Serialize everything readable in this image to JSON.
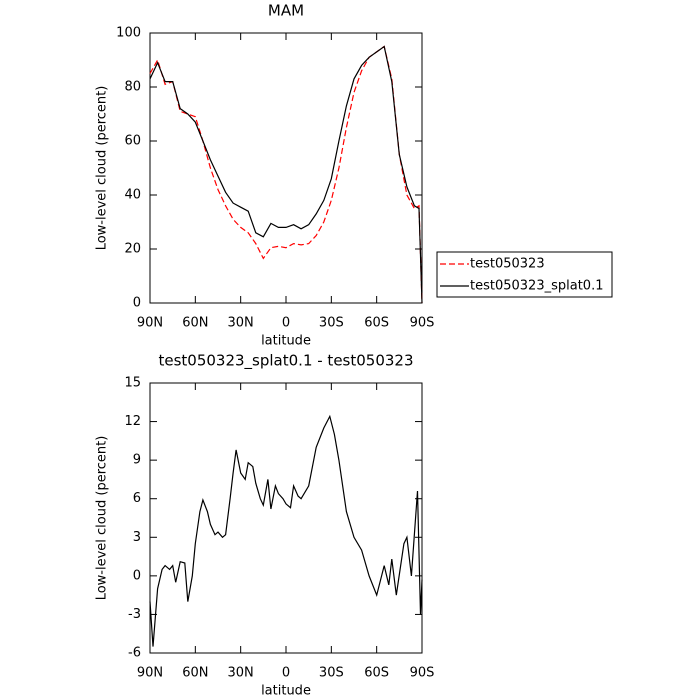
{
  "chart_data": [
    {
      "type": "line",
      "title": "MAM",
      "x_label": "latitude",
      "y_label": "Low-level cloud (percent)",
      "xlim": [
        90,
        -90
      ],
      "xticks": [
        {
          "value": 90,
          "label": "90N"
        },
        {
          "value": 60,
          "label": "60N"
        },
        {
          "value": 30,
          "label": "30N"
        },
        0,
        {
          "value": -30,
          "label": "30S"
        },
        {
          "value": -60,
          "label": "60S"
        },
        {
          "value": -90,
          "label": "90S"
        }
      ],
      "ylim": [
        0,
        100
      ],
      "yticks": [
        0,
        20,
        40,
        60,
        80,
        100
      ],
      "legend": "right",
      "x": [
        90,
        85,
        80,
        75,
        70,
        65,
        60,
        55,
        50,
        45,
        40,
        35,
        30,
        25,
        20,
        15,
        10,
        5,
        0,
        -5,
        -10,
        -15,
        -20,
        -25,
        -30,
        -35,
        -40,
        -45,
        -50,
        -55,
        -60,
        -65,
        -70,
        -75,
        -80,
        -85,
        -88,
        -90
      ],
      "series": [
        {
          "name": "test050323",
          "color": "#ff0000",
          "linestyle": "dashed",
          "values": [
            85,
            90,
            81,
            82,
            71,
            70,
            69,
            60,
            50,
            42,
            36,
            31,
            28,
            26,
            22,
            16.5,
            20.5,
            21,
            20.5,
            22,
            21.5,
            22,
            25,
            30,
            38,
            50,
            65,
            78,
            86,
            91,
            93,
            95,
            83,
            55,
            40,
            35,
            36,
            0
          ]
        },
        {
          "name": "test050323_splat0.1",
          "color": "#000000",
          "linestyle": "solid",
          "values": [
            83,
            89,
            82,
            82,
            72,
            70,
            67,
            60,
            53,
            47,
            41,
            37,
            35.5,
            34,
            26,
            24.5,
            29.5,
            28,
            28,
            29,
            27.5,
            29,
            33,
            38,
            46,
            60,
            73,
            83,
            88,
            91,
            93,
            95,
            82,
            55,
            43,
            36,
            35,
            0
          ]
        }
      ]
    },
    {
      "type": "line",
      "title": "test050323_splat0.1 - test050323",
      "x_label": "latitude",
      "y_label": "Low-level cloud (percent)",
      "xlim": [
        90,
        -90
      ],
      "xticks": [
        {
          "value": 90,
          "label": "90N"
        },
        {
          "value": 60,
          "label": "60N"
        },
        {
          "value": 30,
          "label": "30N"
        },
        0,
        {
          "value": -30,
          "label": "30S"
        },
        {
          "value": -60,
          "label": "60S"
        },
        {
          "value": -90,
          "label": "90S"
        }
      ],
      "ylim": [
        -6,
        15
      ],
      "yticks": [
        -6,
        -3,
        0,
        3,
        6,
        9,
        12,
        15
      ],
      "x": [
        90,
        88,
        85,
        82,
        80,
        77,
        75,
        73,
        70,
        67,
        65,
        62,
        60,
        57,
        55,
        52,
        50,
        47,
        45,
        42,
        40,
        37,
        35,
        33,
        30,
        27,
        25,
        22,
        20,
        17,
        15,
        12,
        10,
        7,
        5,
        2,
        0,
        -3,
        -5,
        -8,
        -10,
        -15,
        -20,
        -25,
        -29,
        -32,
        -35,
        -40,
        -45,
        -50,
        -55,
        -60,
        -65,
        -68,
        -70,
        -73,
        -78,
        -80,
        -83,
        -87,
        -89,
        -90
      ],
      "series": [
        {
          "name": "difference",
          "color": "#000000",
          "linestyle": "solid",
          "values": [
            -2,
            -5.5,
            -1,
            0.5,
            0.8,
            0.5,
            0.8,
            -0.5,
            1.1,
            1,
            -2,
            0,
            2.5,
            5,
            5.9,
            5,
            4,
            3.2,
            3.4,
            3,
            3.2,
            6,
            8,
            9.8,
            8,
            7.5,
            8.8,
            8.5,
            7.2,
            6,
            5.5,
            7.5,
            5.2,
            7,
            6.4,
            6,
            5.6,
            5.3,
            7,
            6.2,
            6,
            7,
            10,
            11.5,
            12.4,
            11,
            9,
            5,
            3,
            2,
            0,
            -1.5,
            0.8,
            -0.7,
            1.3,
            -1.5,
            2.5,
            3,
            0,
            6.6,
            -3,
            -0.3
          ]
        }
      ]
    }
  ]
}
